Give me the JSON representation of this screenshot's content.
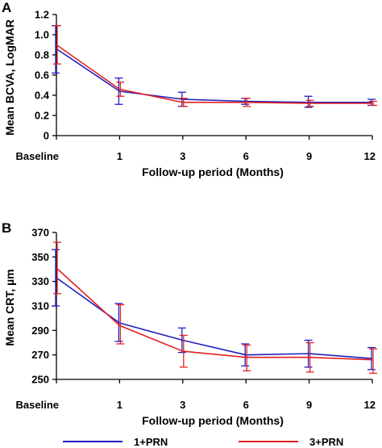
{
  "chart_data": [
    {
      "panel": "A",
      "type": "line",
      "categories": [
        "Baseline",
        "1",
        "3",
        "6",
        "9",
        "12"
      ],
      "xlabel": "Follow-up period (Months)",
      "ylabel": "Mean BCVA, LogMAR",
      "ylim": [
        0,
        1.2
      ],
      "yticks": [
        "0",
        "0.2",
        "0.4",
        "0.6",
        "0.8",
        "1.0",
        "1.2"
      ],
      "error_bars": true,
      "series": [
        {
          "name": "1+PRN",
          "color": "#1f1fbf",
          "values": [
            0.86,
            0.44,
            0.36,
            0.34,
            0.33,
            0.33
          ],
          "err_low": [
            0.62,
            0.31,
            0.29,
            0.31,
            0.28,
            0.3
          ],
          "err_high": [
            1.09,
            0.57,
            0.43,
            0.37,
            0.39,
            0.36
          ]
        },
        {
          "name": "3+PRN",
          "color": "#e32222",
          "values": [
            0.9,
            0.46,
            0.33,
            0.33,
            0.32,
            0.32
          ],
          "err_low": [
            0.71,
            0.39,
            0.29,
            0.29,
            0.29,
            0.3
          ],
          "err_high": [
            1.09,
            0.53,
            0.37,
            0.37,
            0.35,
            0.34
          ]
        }
      ]
    },
    {
      "panel": "B",
      "type": "line",
      "categories": [
        "Baseline",
        "1",
        "3",
        "6",
        "9",
        "12"
      ],
      "xlabel": "Follow-up period (Months)",
      "ylabel": "Mean CRT, µm",
      "ylim": [
        250,
        370
      ],
      "yticks": [
        "250",
        "270",
        "290",
        "310",
        "330",
        "350",
        "370"
      ],
      "error_bars": true,
      "series": [
        {
          "name": "1+PRN",
          "color": "#1f1fbf",
          "values": [
            333,
            296,
            282,
            270,
            271,
            267
          ],
          "err_low": [
            310,
            281,
            272,
            261,
            260,
            258
          ],
          "err_high": [
            356,
            312,
            292,
            279,
            282,
            276
          ]
        },
        {
          "name": "3+PRN",
          "color": "#e32222",
          "values": [
            341,
            294,
            273,
            268,
            268,
            266
          ],
          "err_low": [
            320,
            279,
            260,
            257,
            256,
            255
          ],
          "err_high": [
            362,
            311,
            286,
            278,
            280,
            275
          ]
        }
      ]
    }
  ],
  "legend": {
    "placement": "bottom-center",
    "items": [
      {
        "label": "1+PRN",
        "color": "#1f1fbf"
      },
      {
        "label": "3+PRN",
        "color": "#e32222"
      }
    ]
  }
}
